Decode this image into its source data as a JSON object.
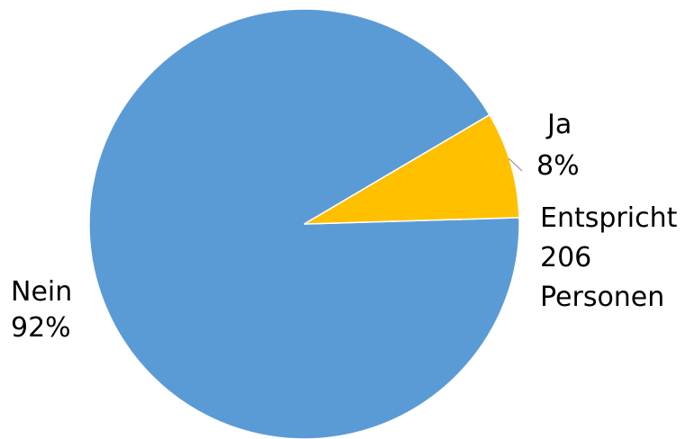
{
  "chart_data": {
    "type": "pie",
    "slices": [
      {
        "label": "Nein",
        "value": 92,
        "value_label": "92%",
        "color": "#5B9BD5"
      },
      {
        "label": "Ja",
        "value": 8,
        "value_label": "8%",
        "color": "#FFC000"
      }
    ],
    "annotation": {
      "lines": [
        "Entspricht",
        "206",
        "Personen"
      ]
    },
    "leader_line_color": "#A6A6A6",
    "legend": "none"
  }
}
